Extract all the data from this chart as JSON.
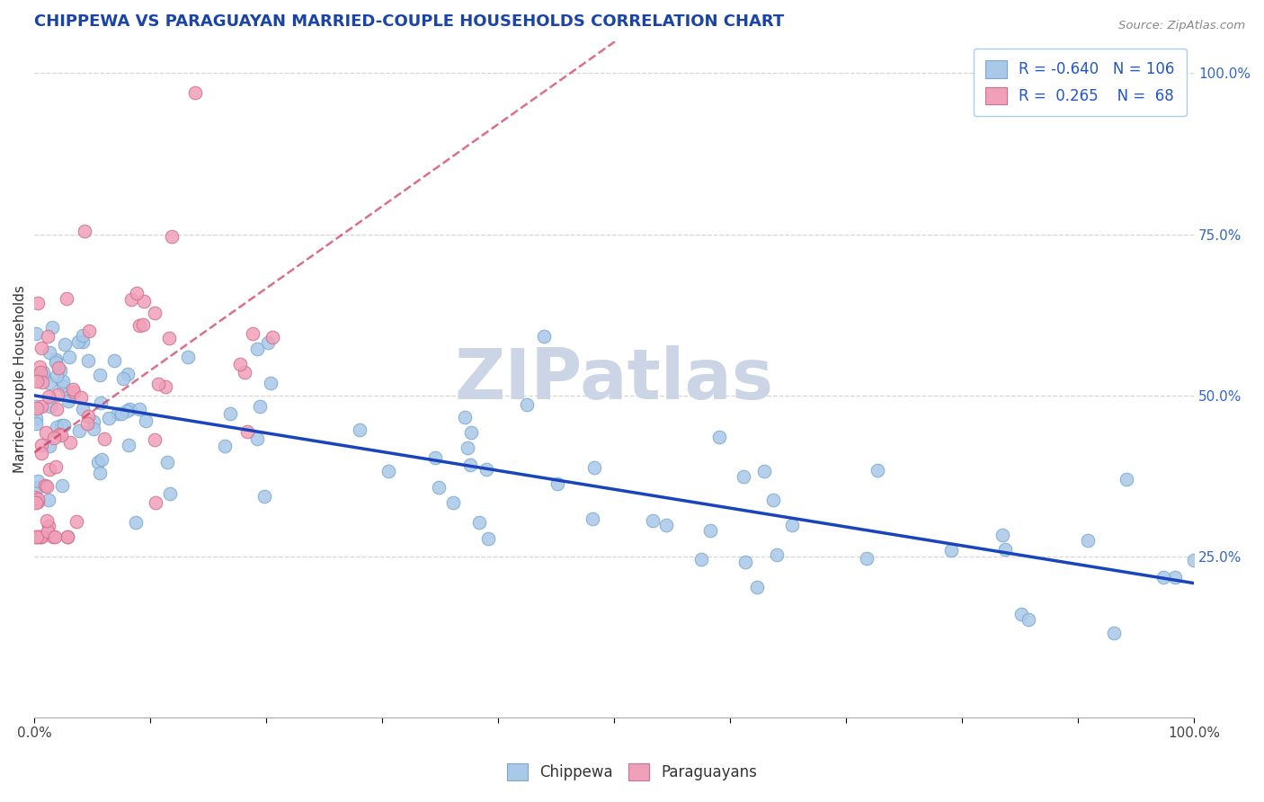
{
  "title": "CHIPPEWA VS PARAGUAYAN MARRIED-COUPLE HOUSEHOLDS CORRELATION CHART",
  "source": "Source: ZipAtlas.com",
  "ylabel": "Married-couple Households",
  "chippewa_color": "#aac8e8",
  "chippewa_edge": "#7aaad0",
  "paraguayan_color": "#f0a0b8",
  "paraguayan_edge": "#d07090",
  "regression_chippewa_color": "#1a44bb",
  "regression_paraguayan_color": "#cc3355",
  "watermark": "ZIPatlas",
  "watermark_color": "#ccd5e5",
  "legend_R_chip": "-0.640",
  "legend_N_chip": "106",
  "legend_R_para": "0.265",
  "legend_N_para": "68",
  "legend_color": "#2255cc",
  "grid_color": "#cccccc",
  "title_color": "#1a44aa",
  "ytick_color": "#3366cc"
}
